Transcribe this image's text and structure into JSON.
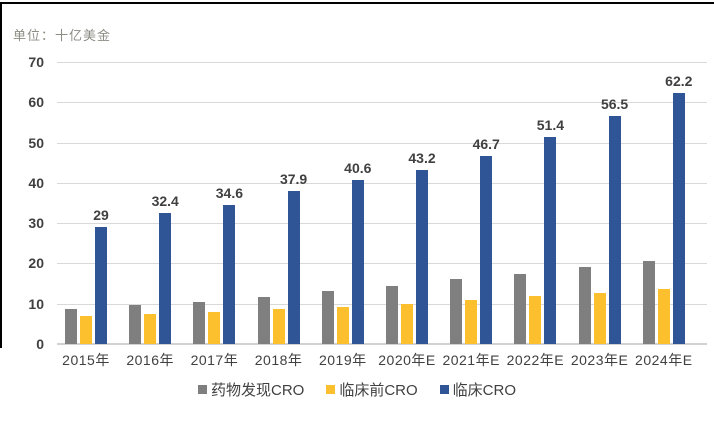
{
  "unit_label": "单位：十亿美金",
  "colors": {
    "drug_discovery": "#7f7f7f",
    "preclinical": "#fcbf2d",
    "clinical": "#2f5597",
    "gridline": "#d9d9d9",
    "axis_line": "#d2d2d2",
    "tick_text": "#404040",
    "unit_text": "#8c8c84",
    "figure_border": "#000000"
  },
  "chart_data": {
    "type": "bar",
    "title": "",
    "unit_label": "单位：十亿美金",
    "categories": [
      "2015年",
      "2016年",
      "2017年",
      "2018年",
      "2019年",
      "2020年E",
      "2021年E",
      "2022年E",
      "2023年E",
      "2024年E"
    ],
    "series": [
      {
        "name": "药物发现CRO",
        "color": "#7f7f7f",
        "values": [
          8.7,
          9.7,
          10.5,
          11.6,
          13.1,
          14.4,
          16.1,
          17.4,
          19.0,
          20.5
        ],
        "show_labels": false
      },
      {
        "name": "临床前CRO",
        "color": "#fcbf2d",
        "values": [
          7.0,
          7.4,
          8.0,
          8.6,
          9.3,
          9.9,
          10.9,
          11.8,
          12.7,
          13.7
        ],
        "show_labels": false
      },
      {
        "name": "临床CRO",
        "color": "#2f5597",
        "values": [
          29,
          32.4,
          34.6,
          37.9,
          40.6,
          43.2,
          46.7,
          51.4,
          56.5,
          62.2
        ],
        "labels": [
          "29",
          "32.4",
          "34.6",
          "37.9",
          "40.6",
          "43.2",
          "46.7",
          "51.4",
          "56.5",
          "62.2"
        ],
        "show_labels": true
      }
    ],
    "xlabel": "",
    "ylabel": "",
    "ylim": [
      0,
      70
    ],
    "yticks": [
      0,
      10,
      20,
      30,
      40,
      50,
      60,
      70
    ],
    "grid": true,
    "legend_position": "bottom"
  }
}
